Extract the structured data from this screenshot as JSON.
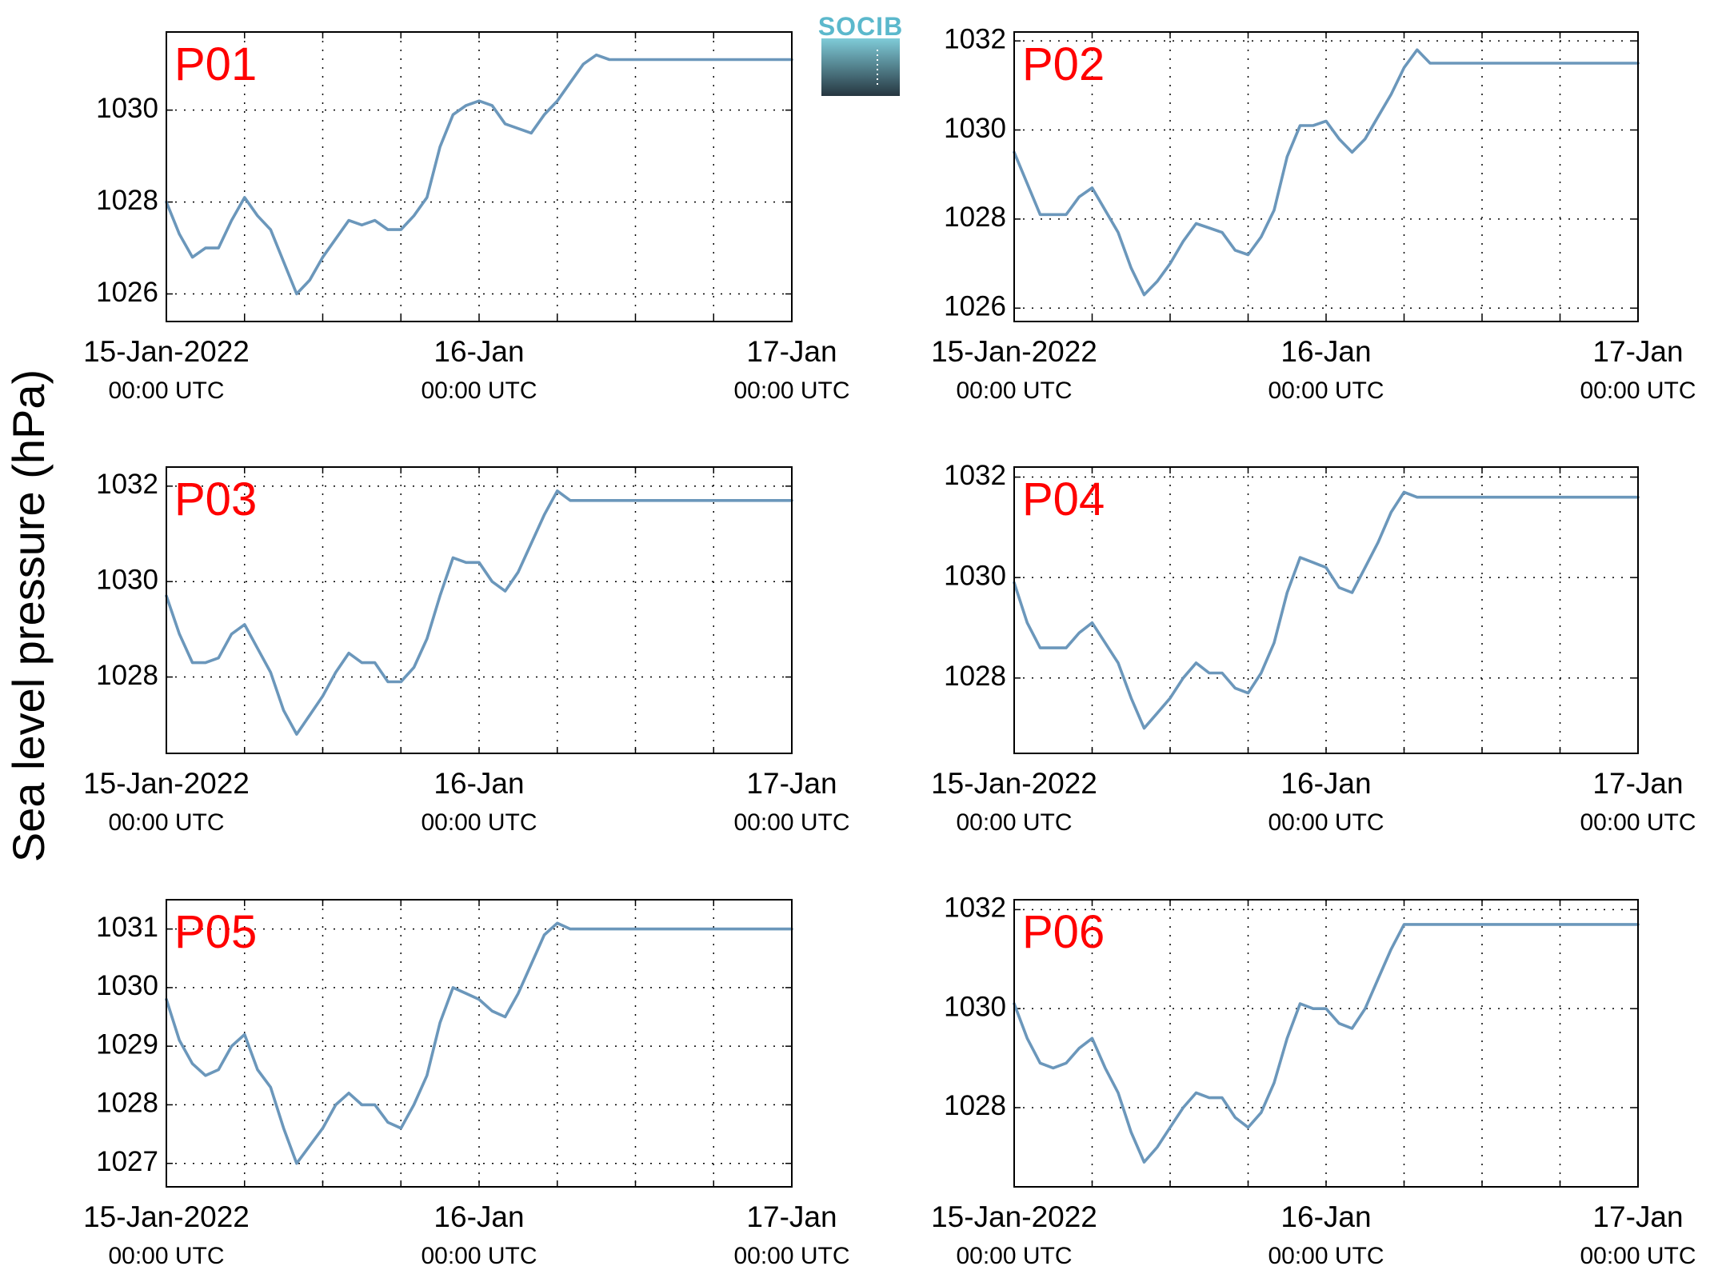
{
  "logo": {
    "text": "SOCIB",
    "color_top": "#7fcbd8",
    "color_bottom": "#263640",
    "text_color": "#5bb8cc"
  },
  "ylabel": "Sea level pressure (hPa)",
  "colors": {
    "series": "#6b97bb",
    "label": "#ff0000"
  },
  "chart_data": [
    {
      "type": "line",
      "label": "P01",
      "ylim": [
        1025.4,
        1031.7
      ],
      "yticks": [
        1026,
        1028,
        1030
      ],
      "xlim": [
        0,
        48
      ],
      "xticks": [
        0,
        6,
        12,
        18,
        24,
        30,
        36,
        42,
        48
      ],
      "xticklabels": [
        {
          "x": 0,
          "date": "15-Jan-2022",
          "time": "00:00 UTC"
        },
        {
          "x": 24,
          "date": "16-Jan",
          "time": "00:00 UTC"
        },
        {
          "x": 48,
          "date": "17-Jan",
          "time": "00:00 UTC"
        }
      ],
      "grid": true,
      "x": [
        0,
        1,
        2,
        3,
        4,
        5,
        6,
        7,
        8,
        9,
        10,
        11,
        12,
        13,
        14,
        15,
        16,
        17,
        18,
        19,
        20,
        21,
        22,
        23,
        24,
        25,
        26,
        27,
        28,
        29,
        30,
        31,
        32,
        33,
        34,
        35,
        36,
        37,
        38,
        39,
        40,
        41,
        42,
        43,
        44,
        45,
        46,
        47,
        48
      ],
      "values": [
        1028.0,
        1027.3,
        1026.8,
        1027.0,
        1027.0,
        1027.6,
        1028.1,
        1027.7,
        1027.4,
        1026.7,
        1026.0,
        1026.3,
        1026.8,
        1027.2,
        1027.6,
        1027.5,
        1027.6,
        1027.4,
        1027.4,
        1027.7,
        1028.1,
        1029.2,
        1029.9,
        1030.1,
        1030.2,
        1030.1,
        1029.7,
        1029.6,
        1029.5,
        1029.9,
        1030.2,
        1030.6,
        1031.0,
        1031.2,
        1031.1,
        1031.1,
        1031.1,
        1031.1,
        1031.1,
        1031.1,
        1031.1,
        1031.1,
        1031.1,
        1031.1,
        1031.1,
        1031.1,
        1031.1,
        1031.1,
        1031.1
      ]
    },
    {
      "type": "line",
      "label": "P02",
      "ylim": [
        1025.7,
        1032.2
      ],
      "yticks": [
        1026,
        1028,
        1030,
        1032
      ],
      "xlim": [
        0,
        48
      ],
      "xticks": [
        0,
        6,
        12,
        18,
        24,
        30,
        36,
        42,
        48
      ],
      "xticklabels": [
        {
          "x": 0,
          "date": "15-Jan-2022",
          "time": "00:00 UTC"
        },
        {
          "x": 24,
          "date": "16-Jan",
          "time": "00:00 UTC"
        },
        {
          "x": 48,
          "date": "17-Jan",
          "time": "00:00 UTC"
        }
      ],
      "grid": true,
      "x": [
        0,
        1,
        2,
        3,
        4,
        5,
        6,
        7,
        8,
        9,
        10,
        11,
        12,
        13,
        14,
        15,
        16,
        17,
        18,
        19,
        20,
        21,
        22,
        23,
        24,
        25,
        26,
        27,
        28,
        29,
        30,
        31,
        32,
        33,
        34,
        35,
        36,
        37,
        38,
        39,
        40,
        41,
        42,
        43,
        44,
        45,
        46,
        47,
        48
      ],
      "values": [
        1029.5,
        1028.8,
        1028.1,
        1028.1,
        1028.1,
        1028.5,
        1028.7,
        1028.2,
        1027.7,
        1026.9,
        1026.3,
        1026.6,
        1027.0,
        1027.5,
        1027.9,
        1027.8,
        1027.7,
        1027.3,
        1027.2,
        1027.6,
        1028.2,
        1029.4,
        1030.1,
        1030.1,
        1030.2,
        1029.8,
        1029.5,
        1029.8,
        1030.3,
        1030.8,
        1031.4,
        1031.8,
        1031.5,
        1031.5,
        1031.5,
        1031.5,
        1031.5,
        1031.5,
        1031.5,
        1031.5,
        1031.5,
        1031.5,
        1031.5,
        1031.5,
        1031.5,
        1031.5,
        1031.5,
        1031.5,
        1031.5
      ]
    },
    {
      "type": "line",
      "label": "P03",
      "ylim": [
        1026.4,
        1032.4
      ],
      "yticks": [
        1028,
        1030,
        1032
      ],
      "xlim": [
        0,
        48
      ],
      "xticks": [
        0,
        6,
        12,
        18,
        24,
        30,
        36,
        42,
        48
      ],
      "xticklabels": [
        {
          "x": 0,
          "date": "15-Jan-2022",
          "time": "00:00 UTC"
        },
        {
          "x": 24,
          "date": "16-Jan",
          "time": "00:00 UTC"
        },
        {
          "x": 48,
          "date": "17-Jan",
          "time": "00:00 UTC"
        }
      ],
      "grid": true,
      "x": [
        0,
        1,
        2,
        3,
        4,
        5,
        6,
        7,
        8,
        9,
        10,
        11,
        12,
        13,
        14,
        15,
        16,
        17,
        18,
        19,
        20,
        21,
        22,
        23,
        24,
        25,
        26,
        27,
        28,
        29,
        30,
        31,
        32,
        33,
        34,
        35,
        36,
        37,
        38,
        39,
        40,
        41,
        42,
        43,
        44,
        45,
        46,
        47,
        48
      ],
      "values": [
        1029.7,
        1028.9,
        1028.3,
        1028.3,
        1028.4,
        1028.9,
        1029.1,
        1028.6,
        1028.1,
        1027.3,
        1026.8,
        1027.2,
        1027.6,
        1028.1,
        1028.5,
        1028.3,
        1028.3,
        1027.9,
        1027.9,
        1028.2,
        1028.8,
        1029.7,
        1030.5,
        1030.4,
        1030.4,
        1030.0,
        1029.8,
        1030.2,
        1030.8,
        1031.4,
        1031.9,
        1031.7,
        1031.7,
        1031.7,
        1031.7,
        1031.7,
        1031.7,
        1031.7,
        1031.7,
        1031.7,
        1031.7,
        1031.7,
        1031.7,
        1031.7,
        1031.7,
        1031.7,
        1031.7,
        1031.7,
        1031.7
      ]
    },
    {
      "type": "line",
      "label": "P04",
      "ylim": [
        1026.5,
        1032.2
      ],
      "yticks": [
        1028,
        1030,
        1032
      ],
      "xlim": [
        0,
        48
      ],
      "xticks": [
        0,
        6,
        12,
        18,
        24,
        30,
        36,
        42,
        48
      ],
      "xticklabels": [
        {
          "x": 0,
          "date": "15-Jan-2022",
          "time": "00:00 UTC"
        },
        {
          "x": 24,
          "date": "16-Jan",
          "time": "00:00 UTC"
        },
        {
          "x": 48,
          "date": "17-Jan",
          "time": "00:00 UTC"
        }
      ],
      "grid": true,
      "x": [
        0,
        1,
        2,
        3,
        4,
        5,
        6,
        7,
        8,
        9,
        10,
        11,
        12,
        13,
        14,
        15,
        16,
        17,
        18,
        19,
        20,
        21,
        22,
        23,
        24,
        25,
        26,
        27,
        28,
        29,
        30,
        31,
        32,
        33,
        34,
        35,
        36,
        37,
        38,
        39,
        40,
        41,
        42,
        43,
        44,
        45,
        46,
        47,
        48
      ],
      "values": [
        1029.9,
        1029.1,
        1028.6,
        1028.6,
        1028.6,
        1028.9,
        1029.1,
        1028.7,
        1028.3,
        1027.6,
        1027.0,
        1027.3,
        1027.6,
        1028.0,
        1028.3,
        1028.1,
        1028.1,
        1027.8,
        1027.7,
        1028.1,
        1028.7,
        1029.7,
        1030.4,
        1030.3,
        1030.2,
        1029.8,
        1029.7,
        1030.2,
        1030.7,
        1031.3,
        1031.7,
        1031.6,
        1031.6,
        1031.6,
        1031.6,
        1031.6,
        1031.6,
        1031.6,
        1031.6,
        1031.6,
        1031.6,
        1031.6,
        1031.6,
        1031.6,
        1031.6,
        1031.6,
        1031.6,
        1031.6,
        1031.6
      ]
    },
    {
      "type": "line",
      "label": "P05",
      "ylim": [
        1026.6,
        1031.5
      ],
      "yticks": [
        1027,
        1028,
        1029,
        1030,
        1031
      ],
      "xlim": [
        0,
        48
      ],
      "xticks": [
        0,
        6,
        12,
        18,
        24,
        30,
        36,
        42,
        48
      ],
      "xticklabels": [
        {
          "x": 0,
          "date": "15-Jan-2022",
          "time": "00:00 UTC"
        },
        {
          "x": 24,
          "date": "16-Jan",
          "time": "00:00 UTC"
        },
        {
          "x": 48,
          "date": "17-Jan",
          "time": "00:00 UTC"
        }
      ],
      "grid": true,
      "x": [
        0,
        1,
        2,
        3,
        4,
        5,
        6,
        7,
        8,
        9,
        10,
        11,
        12,
        13,
        14,
        15,
        16,
        17,
        18,
        19,
        20,
        21,
        22,
        23,
        24,
        25,
        26,
        27,
        28,
        29,
        30,
        31,
        32,
        33,
        34,
        35,
        36,
        37,
        38,
        39,
        40,
        41,
        42,
        43,
        44,
        45,
        46,
        47,
        48
      ],
      "values": [
        1029.8,
        1029.1,
        1028.7,
        1028.5,
        1028.6,
        1029.0,
        1029.2,
        1028.6,
        1028.3,
        1027.6,
        1027.0,
        1027.3,
        1027.6,
        1028.0,
        1028.2,
        1028.0,
        1028.0,
        1027.7,
        1027.6,
        1028.0,
        1028.5,
        1029.4,
        1030.0,
        1029.9,
        1029.8,
        1029.6,
        1029.5,
        1029.9,
        1030.4,
        1030.9,
        1031.1,
        1031.0,
        1031.0,
        1031.0,
        1031.0,
        1031.0,
        1031.0,
        1031.0,
        1031.0,
        1031.0,
        1031.0,
        1031.0,
        1031.0,
        1031.0,
        1031.0,
        1031.0,
        1031.0,
        1031.0,
        1031.0
      ]
    },
    {
      "type": "line",
      "label": "P06",
      "ylim": [
        1026.4,
        1032.2
      ],
      "yticks": [
        1028,
        1030,
        1032
      ],
      "xlim": [
        0,
        48
      ],
      "xticks": [
        0,
        6,
        12,
        18,
        24,
        30,
        36,
        42,
        48
      ],
      "xticklabels": [
        {
          "x": 0,
          "date": "15-Jan-2022",
          "time": "00:00 UTC"
        },
        {
          "x": 24,
          "date": "16-Jan",
          "time": "00:00 UTC"
        },
        {
          "x": 48,
          "date": "17-Jan",
          "time": "00:00 UTC"
        }
      ],
      "grid": true,
      "x": [
        0,
        1,
        2,
        3,
        4,
        5,
        6,
        7,
        8,
        9,
        10,
        11,
        12,
        13,
        14,
        15,
        16,
        17,
        18,
        19,
        20,
        21,
        22,
        23,
        24,
        25,
        26,
        27,
        28,
        29,
        30,
        31,
        32,
        33,
        34,
        35,
        36,
        37,
        38,
        39,
        40,
        41,
        42,
        43,
        44,
        45,
        46,
        47,
        48
      ],
      "values": [
        1030.1,
        1029.4,
        1028.9,
        1028.8,
        1028.9,
        1029.2,
        1029.4,
        1028.8,
        1028.3,
        1027.5,
        1026.9,
        1027.2,
        1027.6,
        1028.0,
        1028.3,
        1028.2,
        1028.2,
        1027.8,
        1027.6,
        1027.9,
        1028.5,
        1029.4,
        1030.1,
        1030.0,
        1030.0,
        1029.7,
        1029.6,
        1030.0,
        1030.6,
        1031.2,
        1031.7,
        1031.7,
        1031.7,
        1031.7,
        1031.7,
        1031.7,
        1031.7,
        1031.7,
        1031.7,
        1031.7,
        1031.7,
        1031.7,
        1031.7,
        1031.7,
        1031.7,
        1031.7,
        1031.7,
        1031.7,
        1031.7
      ]
    }
  ]
}
